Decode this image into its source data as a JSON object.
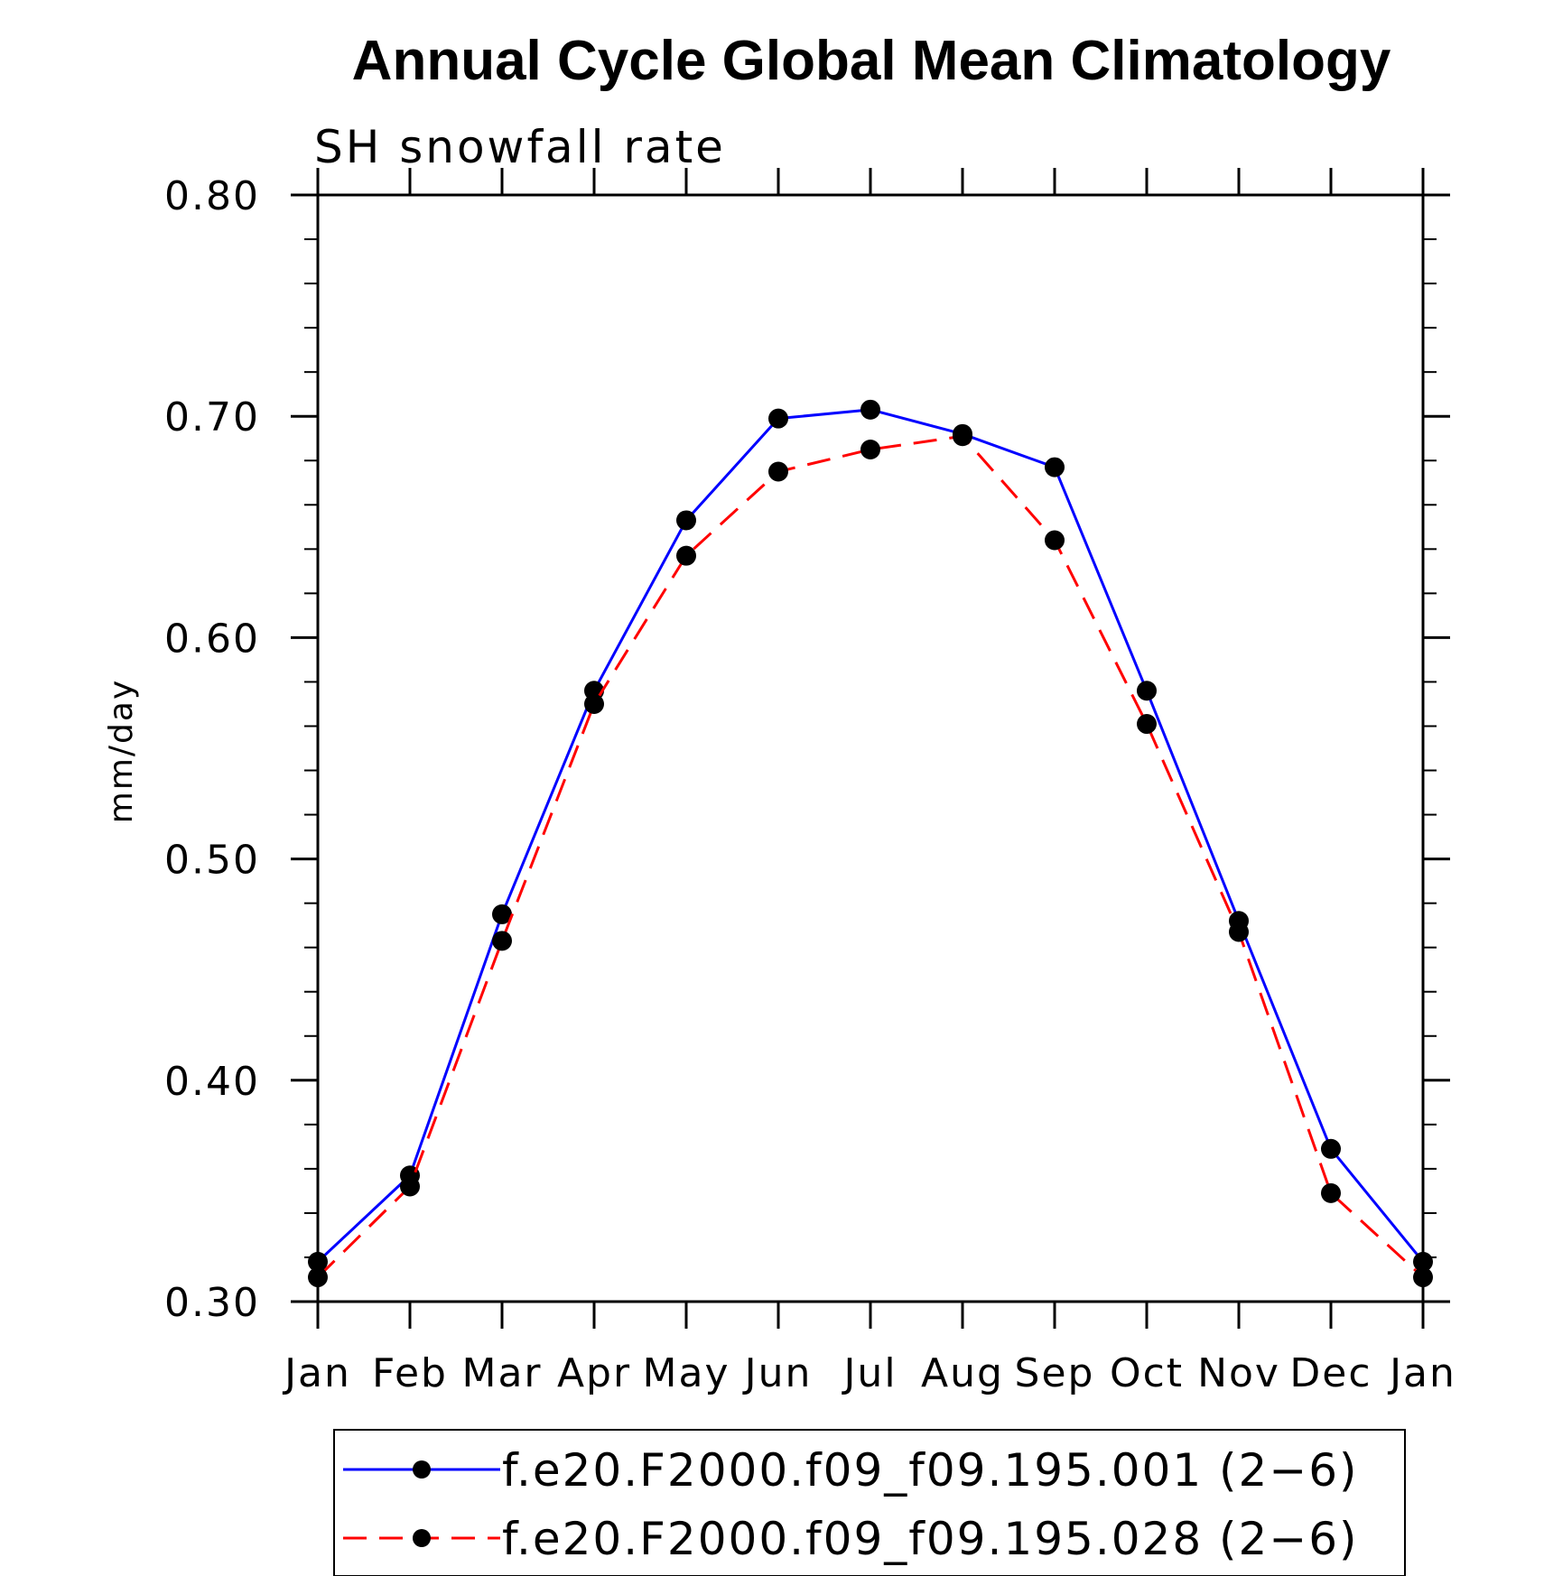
{
  "chart_data": {
    "type": "line",
    "title": "Annual Cycle Global Mean Climatology",
    "subtitle": "SH snowfall rate",
    "xlabel": "",
    "ylabel": "mm/day",
    "categories": [
      "Jan",
      "Feb",
      "Mar",
      "Apr",
      "May",
      "Jun",
      "Jul",
      "Aug",
      "Sep",
      "Oct",
      "Nov",
      "Dec",
      "Jan"
    ],
    "ylim": [
      0.3,
      0.8
    ],
    "yticks": [
      0.3,
      0.4,
      0.5,
      0.6,
      0.7,
      0.8
    ],
    "ytick_labels": [
      "0.30",
      "0.40",
      "0.50",
      "0.60",
      "0.70",
      "0.80"
    ],
    "series": [
      {
        "name": "f.e20.F2000.f09_f09.195.001 (2−6)",
        "color": "#0000ff",
        "dash": "solid",
        "values": [
          0.318,
          0.357,
          0.475,
          0.576,
          0.653,
          0.699,
          0.703,
          0.692,
          0.677,
          0.576,
          0.472,
          0.369,
          0.318
        ]
      },
      {
        "name": "f.e20.F2000.f09_f09.195.028 (2−6)",
        "color": "#ff0000",
        "dash": "dashed",
        "values": [
          0.311,
          0.352,
          0.463,
          0.57,
          0.637,
          0.675,
          0.685,
          0.691,
          0.644,
          0.561,
          0.467,
          0.349,
          0.311
        ]
      }
    ],
    "legend_position": "bottom"
  }
}
